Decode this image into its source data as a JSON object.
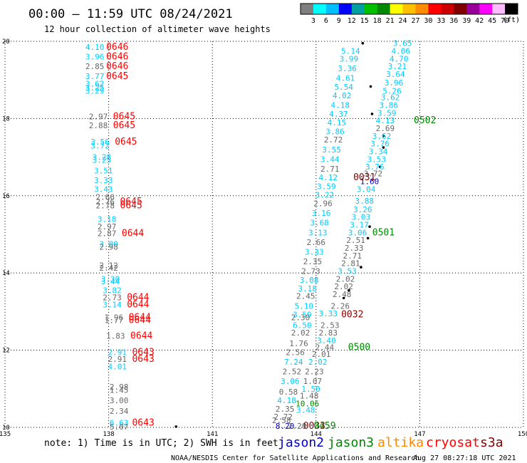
{
  "header": {
    "title": "00:00 – 11:59 UTC 08/24/2021",
    "subtitle": "12 hour collection of altimeter wave heights"
  },
  "color_scale": {
    "colors": [
      "#7f7f7f",
      "#00ffff",
      "#00bfff",
      "#0000ff",
      "#00a0a0",
      "#00c000",
      "#008800",
      "#ffff00",
      "#ffc000",
      "#ff8c00",
      "#ff0000",
      "#cc0000",
      "#800000",
      "#990099",
      "#ff00ff",
      "#ffbbff",
      "#000000"
    ],
    "labels": [
      "3",
      "6",
      "9",
      "12",
      "15",
      "18",
      "21",
      "24",
      "27",
      "30",
      "33",
      "36",
      "39",
      "42",
      "45",
      "70"
    ],
    "unit": "(ft)"
  },
  "colors": {
    "jason2": "#0000cc",
    "jason3": "#008800",
    "altika": "#ff8800",
    "cryosat": "#ff0000",
    "s3a": "#880000",
    "swh_cyan": "#00ccff",
    "swh_gray": "#666666",
    "coast": "#000000"
  },
  "footer": {
    "note": "note: 1) Time is in UTC; 2) SWH is in feet",
    "sat_jason2": "jason2",
    "sat_jason3": "jason3",
    "sat_altika": "altika",
    "sat_cryosat": "cryosat",
    "sat_s3a": "s3a",
    "credit": "NOAA/NESDIS Center for Satellite Applications and Research",
    "timestamp": "Aug 27 08:27:18 UTC 2021"
  },
  "chart_data": {
    "type": "scatter",
    "xlim": [
      135,
      150
    ],
    "ylim": [
      10,
      20
    ],
    "x_ticks": [
      135,
      138,
      141,
      144,
      147,
      150
    ],
    "y_ticks": [
      10,
      12,
      14,
      16,
      18,
      20
    ],
    "grid": true,
    "points": [
      {
        "lon": 137.6,
        "lat": 19.85,
        "v": "4.10",
        "c": "cyan"
      },
      {
        "lon": 138.25,
        "lat": 19.85,
        "v": "0646",
        "c": "red"
      },
      {
        "lon": 137.6,
        "lat": 19.6,
        "v": "3.96",
        "c": "cyan"
      },
      {
        "lon": 138.25,
        "lat": 19.6,
        "v": "0646",
        "c": "red"
      },
      {
        "lon": 137.6,
        "lat": 19.35,
        "v": "2.85",
        "c": "gray"
      },
      {
        "lon": 138.25,
        "lat": 19.35,
        "v": "0646",
        "c": "red"
      },
      {
        "lon": 137.6,
        "lat": 19.1,
        "v": "3.77",
        "c": "cyan"
      },
      {
        "lon": 138.25,
        "lat": 19.1,
        "v": "0645",
        "c": "red"
      },
      {
        "lon": 137.6,
        "lat": 18.9,
        "v": "3.62",
        "c": "cyan"
      },
      {
        "lon": 137.6,
        "lat": 18.8,
        "v": "3.25",
        "c": "cyan"
      },
      {
        "lon": 137.6,
        "lat": 18.72,
        "v": "3.29",
        "c": "cyan"
      },
      {
        "lon": 137.7,
        "lat": 18.05,
        "v": "2.97",
        "c": "gray"
      },
      {
        "lon": 137.7,
        "lat": 17.82,
        "v": "2.88",
        "c": "gray"
      },
      {
        "lon": 138.45,
        "lat": 18.05,
        "v": "0645",
        "c": "red"
      },
      {
        "lon": 138.45,
        "lat": 17.82,
        "v": "0645",
        "c": "red"
      },
      {
        "lon": 137.75,
        "lat": 17.4,
        "v": "3.56",
        "c": "cyan"
      },
      {
        "lon": 138.5,
        "lat": 17.4,
        "v": "0645",
        "c": "red"
      },
      {
        "lon": 137.75,
        "lat": 17.3,
        "v": "3.72",
        "c": "cyan"
      },
      {
        "lon": 137.8,
        "lat": 17.0,
        "v": "3.28",
        "c": "cyan"
      },
      {
        "lon": 137.8,
        "lat": 16.93,
        "v": "3.25",
        "c": "cyan"
      },
      {
        "lon": 137.85,
        "lat": 16.65,
        "v": "3.51",
        "c": "cyan"
      },
      {
        "lon": 137.85,
        "lat": 16.4,
        "v": "3.33",
        "c": "cyan"
      },
      {
        "lon": 137.85,
        "lat": 16.17,
        "v": "3.43",
        "c": "cyan"
      },
      {
        "lon": 137.9,
        "lat": 15.97,
        "v": "2.66",
        "c": "gray"
      },
      {
        "lon": 137.9,
        "lat": 15.85,
        "v": "2.76",
        "c": "gray"
      },
      {
        "lon": 137.9,
        "lat": 15.75,
        "v": "2.78",
        "c": "gray"
      },
      {
        "lon": 138.65,
        "lat": 15.85,
        "v": "0645",
        "c": "red"
      },
      {
        "lon": 138.65,
        "lat": 15.75,
        "v": "0645",
        "c": "red"
      },
      {
        "lon": 137.95,
        "lat": 15.4,
        "v": "3.18",
        "c": "cyan"
      },
      {
        "lon": 137.95,
        "lat": 15.2,
        "v": "2.97",
        "c": "gray"
      },
      {
        "lon": 137.95,
        "lat": 15.03,
        "v": "2.87",
        "c": "gray"
      },
      {
        "lon": 138.7,
        "lat": 15.03,
        "v": "0644",
        "c": "red"
      },
      {
        "lon": 138.0,
        "lat": 14.75,
        "v": "3.00",
        "c": "cyan"
      },
      {
        "lon": 138.0,
        "lat": 14.68,
        "v": "2.98",
        "c": "gray"
      },
      {
        "lon": 138.0,
        "lat": 14.2,
        "v": "2.12",
        "c": "gray"
      },
      {
        "lon": 138.0,
        "lat": 14.13,
        "v": "2.42",
        "c": "gray"
      },
      {
        "lon": 138.05,
        "lat": 13.85,
        "v": "3.30",
        "c": "cyan"
      },
      {
        "lon": 138.05,
        "lat": 13.78,
        "v": "3.44",
        "c": "cyan"
      },
      {
        "lon": 138.1,
        "lat": 13.55,
        "v": "3.82",
        "c": "cyan"
      },
      {
        "lon": 138.1,
        "lat": 13.37,
        "v": "2.73",
        "c": "gray"
      },
      {
        "lon": 138.1,
        "lat": 13.18,
        "v": "3.14",
        "c": "cyan"
      },
      {
        "lon": 138.85,
        "lat": 13.37,
        "v": "0644",
        "c": "red"
      },
      {
        "lon": 138.85,
        "lat": 13.18,
        "v": "0644",
        "c": "red"
      },
      {
        "lon": 138.15,
        "lat": 12.85,
        "v": "1.96",
        "c": "gray"
      },
      {
        "lon": 138.15,
        "lat": 12.78,
        "v": "1.77",
        "c": "gray"
      },
      {
        "lon": 138.9,
        "lat": 12.85,
        "v": "0644",
        "c": "red"
      },
      {
        "lon": 138.9,
        "lat": 12.78,
        "v": "0644",
        "c": "red"
      },
      {
        "lon": 138.2,
        "lat": 12.37,
        "v": "1.83",
        "c": "gray"
      },
      {
        "lon": 138.95,
        "lat": 12.37,
        "v": "0644",
        "c": "red"
      },
      {
        "lon": 138.25,
        "lat": 11.95,
        "v": "2.91",
        "c": "cyan"
      },
      {
        "lon": 138.25,
        "lat": 11.77,
        "v": "2.91",
        "c": "gray"
      },
      {
        "lon": 138.25,
        "lat": 11.58,
        "v": "4.01",
        "c": "cyan"
      },
      {
        "lon": 139.0,
        "lat": 11.95,
        "v": "0643",
        "c": "red"
      },
      {
        "lon": 139.0,
        "lat": 11.77,
        "v": "0643",
        "c": "red"
      },
      {
        "lon": 138.3,
        "lat": 11.05,
        "v": "2.98",
        "c": "gray"
      },
      {
        "lon": 138.3,
        "lat": 10.97,
        "v": "1.45",
        "c": "gray"
      },
      {
        "lon": 138.3,
        "lat": 10.7,
        "v": "3.00",
        "c": "gray"
      },
      {
        "lon": 138.3,
        "lat": 10.42,
        "v": "2.34",
        "c": "gray"
      },
      {
        "lon": 138.3,
        "lat": 10.12,
        "v": "6.63",
        "c": "cyan"
      },
      {
        "lon": 139.0,
        "lat": 10.12,
        "v": "0643",
        "c": "red"
      },
      {
        "lon": 138.3,
        "lat": 10.02,
        "v": "5.07",
        "c": "gray"
      },
      {
        "lon": 146.5,
        "lat": 19.95,
        "v": "3.65",
        "c": "cyan"
      },
      {
        "lon": 146.45,
        "lat": 19.75,
        "v": "4.06",
        "c": "cyan"
      },
      {
        "lon": 146.4,
        "lat": 19.55,
        "v": "4.70",
        "c": "cyan"
      },
      {
        "lon": 146.35,
        "lat": 19.35,
        "v": "3.21",
        "c": "cyan"
      },
      {
        "lon": 146.3,
        "lat": 19.15,
        "v": "3.64",
        "c": "cyan"
      },
      {
        "lon": 146.25,
        "lat": 18.93,
        "v": "3.96",
        "c": "cyan"
      },
      {
        "lon": 146.2,
        "lat": 18.72,
        "v": "5.26",
        "c": "cyan"
      },
      {
        "lon": 146.15,
        "lat": 18.55,
        "v": "3.62",
        "c": "cyan"
      },
      {
        "lon": 146.1,
        "lat": 18.35,
        "v": "3.86",
        "c": "cyan"
      },
      {
        "lon": 146.05,
        "lat": 18.15,
        "v": "3.59",
        "c": "cyan"
      },
      {
        "lon": 146.0,
        "lat": 17.95,
        "v": "4.13",
        "c": "cyan"
      },
      {
        "lon": 146.0,
        "lat": 17.75,
        "v": "2.69",
        "c": "gray"
      },
      {
        "lon": 147.15,
        "lat": 17.95,
        "v": "0502",
        "c": "green"
      },
      {
        "lon": 145.9,
        "lat": 17.55,
        "v": "3.62",
        "c": "cyan"
      },
      {
        "lon": 145.85,
        "lat": 17.35,
        "v": "3.76",
        "c": "cyan"
      },
      {
        "lon": 145.8,
        "lat": 17.15,
        "v": "3.34",
        "c": "cyan"
      },
      {
        "lon": 145.75,
        "lat": 16.95,
        "v": "3.53",
        "c": "cyan"
      },
      {
        "lon": 145.7,
        "lat": 16.75,
        "v": "3.76",
        "c": "cyan"
      },
      {
        "lon": 145.65,
        "lat": 16.58,
        "v": "3.72",
        "c": "gray"
      },
      {
        "lon": 145.0,
        "lat": 19.75,
        "v": "5.14",
        "c": "cyan"
      },
      {
        "lon": 144.95,
        "lat": 19.55,
        "v": "3.99",
        "c": "cyan"
      },
      {
        "lon": 144.9,
        "lat": 19.3,
        "v": "3.36",
        "c": "cyan"
      },
      {
        "lon": 144.85,
        "lat": 19.05,
        "v": "4.61",
        "c": "cyan"
      },
      {
        "lon": 144.8,
        "lat": 18.82,
        "v": "5.54",
        "c": "cyan"
      },
      {
        "lon": 144.75,
        "lat": 18.6,
        "v": "4.02",
        "c": "cyan"
      },
      {
        "lon": 144.7,
        "lat": 18.35,
        "v": "4.18",
        "c": "cyan"
      },
      {
        "lon": 144.65,
        "lat": 18.12,
        "v": "4.37",
        "c": "cyan"
      },
      {
        "lon": 144.6,
        "lat": 17.9,
        "v": "4.15",
        "c": "cyan"
      },
      {
        "lon": 144.55,
        "lat": 17.67,
        "v": "3.86",
        "c": "cyan"
      },
      {
        "lon": 144.5,
        "lat": 17.45,
        "v": "2.72",
        "c": "gray"
      },
      {
        "lon": 144.45,
        "lat": 17.2,
        "v": "3.55",
        "c": "cyan"
      },
      {
        "lon": 144.4,
        "lat": 16.95,
        "v": "3.44",
        "c": "cyan"
      },
      {
        "lon": 144.4,
        "lat": 16.7,
        "v": "2.71",
        "c": "gray"
      },
      {
        "lon": 144.35,
        "lat": 16.48,
        "v": "4.12",
        "c": "cyan"
      },
      {
        "lon": 145.4,
        "lat": 16.48,
        "v": "0031",
        "c": "darkred"
      },
      {
        "lon": 145.55,
        "lat": 16.37,
        "v": "1.60",
        "c": "blue"
      },
      {
        "lon": 144.3,
        "lat": 16.25,
        "v": "3.59",
        "c": "cyan"
      },
      {
        "lon": 145.45,
        "lat": 16.17,
        "v": "3.04",
        "c": "cyan"
      },
      {
        "lon": 144.25,
        "lat": 16.02,
        "v": "3.22",
        "c": "cyan"
      },
      {
        "lon": 145.4,
        "lat": 15.87,
        "v": "3.88",
        "c": "cyan"
      },
      {
        "lon": 144.2,
        "lat": 15.8,
        "v": "2.96",
        "c": "gray"
      },
      {
        "lon": 145.35,
        "lat": 15.65,
        "v": "3.26",
        "c": "cyan"
      },
      {
        "lon": 144.15,
        "lat": 15.55,
        "v": "3.16",
        "c": "cyan"
      },
      {
        "lon": 145.3,
        "lat": 15.45,
        "v": "3.03",
        "c": "cyan"
      },
      {
        "lon": 144.1,
        "lat": 15.3,
        "v": "3.68",
        "c": "cyan"
      },
      {
        "lon": 145.25,
        "lat": 15.25,
        "v": "3.17",
        "c": "cyan"
      },
      {
        "lon": 144.05,
        "lat": 15.05,
        "v": "3.13",
        "c": "cyan"
      },
      {
        "lon": 145.2,
        "lat": 15.05,
        "v": "3.06",
        "c": "cyan"
      },
      {
        "lon": 145.95,
        "lat": 15.05,
        "v": "0501",
        "c": "green"
      },
      {
        "lon": 144.0,
        "lat": 14.8,
        "v": "2.66",
        "c": "gray"
      },
      {
        "lon": 145.15,
        "lat": 14.85,
        "v": "2.51",
        "c": "gray"
      },
      {
        "lon": 143.95,
        "lat": 14.55,
        "v": "3.33",
        "c": "cyan"
      },
      {
        "lon": 145.1,
        "lat": 14.65,
        "v": "2.33",
        "c": "gray"
      },
      {
        "lon": 143.9,
        "lat": 14.3,
        "v": "2.35",
        "c": "gray"
      },
      {
        "lon": 145.05,
        "lat": 14.45,
        "v": "2.71",
        "c": "gray"
      },
      {
        "lon": 143.85,
        "lat": 14.05,
        "v": "2.73",
        "c": "gray"
      },
      {
        "lon": 145.0,
        "lat": 14.25,
        "v": "2.81",
        "c": "gray"
      },
      {
        "lon": 144.9,
        "lat": 14.05,
        "v": "3.53",
        "c": "cyan"
      },
      {
        "lon": 143.8,
        "lat": 13.82,
        "v": "3.08",
        "c": "cyan"
      },
      {
        "lon": 144.85,
        "lat": 13.85,
        "v": "2.02",
        "c": "gray"
      },
      {
        "lon": 143.75,
        "lat": 13.6,
        "v": "3.18",
        "c": "cyan"
      },
      {
        "lon": 144.8,
        "lat": 13.65,
        "v": "2.02",
        "c": "gray"
      },
      {
        "lon": 143.7,
        "lat": 13.4,
        "v": "2.45",
        "c": "gray"
      },
      {
        "lon": 144.75,
        "lat": 13.45,
        "v": "2.48",
        "c": "gray"
      },
      {
        "lon": 143.65,
        "lat": 13.15,
        "v": "5.10",
        "c": "cyan"
      },
      {
        "lon": 144.7,
        "lat": 13.15,
        "v": "2.26",
        "c": "gray"
      },
      {
        "lon": 143.6,
        "lat": 12.92,
        "v": "3.59",
        "c": "cyan"
      },
      {
        "lon": 144.35,
        "lat": 12.95,
        "v": "3.33",
        "c": "cyan"
      },
      {
        "lon": 145.05,
        "lat": 12.92,
        "v": "0032",
        "c": "darkred"
      },
      {
        "lon": 143.55,
        "lat": 12.85,
        "v": "2.30",
        "c": "gray"
      },
      {
        "lon": 143.6,
        "lat": 12.65,
        "v": "6.50",
        "c": "cyan"
      },
      {
        "lon": 144.4,
        "lat": 12.65,
        "v": "2.53",
        "c": "gray"
      },
      {
        "lon": 143.55,
        "lat": 12.45,
        "v": "2.02",
        "c": "gray"
      },
      {
        "lon": 144.35,
        "lat": 12.45,
        "v": "2.83",
        "c": "gray"
      },
      {
        "lon": 144.3,
        "lat": 12.25,
        "v": "3.40",
        "c": "cyan"
      },
      {
        "lon": 143.5,
        "lat": 12.18,
        "v": "1.76",
        "c": "gray"
      },
      {
        "lon": 144.25,
        "lat": 12.08,
        "v": "2.44",
        "c": "gray"
      },
      {
        "lon": 145.25,
        "lat": 12.08,
        "v": "0500",
        "c": "green"
      },
      {
        "lon": 143.4,
        "lat": 11.95,
        "v": "2.56",
        "c": "gray"
      },
      {
        "lon": 144.15,
        "lat": 11.9,
        "v": "2.01",
        "c": "gray"
      },
      {
        "lon": 143.35,
        "lat": 11.7,
        "v": "7.24",
        "c": "cyan"
      },
      {
        "lon": 144.05,
        "lat": 11.7,
        "v": "2.02",
        "c": "cyan"
      },
      {
        "lon": 143.3,
        "lat": 11.45,
        "v": "2.52",
        "c": "gray"
      },
      {
        "lon": 143.95,
        "lat": 11.45,
        "v": "2.23",
        "c": "gray"
      },
      {
        "lon": 143.25,
        "lat": 11.2,
        "v": "3.06",
        "c": "cyan"
      },
      {
        "lon": 143.9,
        "lat": 11.2,
        "v": "1.07",
        "c": "gray"
      },
      {
        "lon": 143.85,
        "lat": 11.0,
        "v": "1.50",
        "c": "cyan"
      },
      {
        "lon": 143.2,
        "lat": 10.92,
        "v": "0.58",
        "c": "gray"
      },
      {
        "lon": 143.8,
        "lat": 10.82,
        "v": "1.48",
        "c": "gray"
      },
      {
        "lon": 143.15,
        "lat": 10.7,
        "v": "4.18",
        "c": "cyan"
      },
      {
        "lon": 143.75,
        "lat": 10.62,
        "v": "10.06",
        "c": "green"
      },
      {
        "lon": 143.1,
        "lat": 10.48,
        "v": "2.35",
        "c": "gray"
      },
      {
        "lon": 143.7,
        "lat": 10.45,
        "v": "3.48",
        "c": "cyan"
      },
      {
        "lon": 143.05,
        "lat": 10.28,
        "v": "2.72",
        "c": "gray"
      },
      {
        "lon": 143.0,
        "lat": 10.18,
        "v": "2.58",
        "c": "gray"
      },
      {
        "lon": 143.1,
        "lat": 10.04,
        "v": "8.20",
        "c": "blue"
      },
      {
        "lon": 143.45,
        "lat": 10.04,
        "v": "2.20",
        "c": "gray"
      },
      {
        "lon": 143.95,
        "lat": 10.04,
        "v": "0033",
        "c": "darkred"
      },
      {
        "lon": 144.25,
        "lat": 10.04,
        "v": "0459",
        "c": "green"
      }
    ],
    "coast_dots": [
      {
        "lon": 145.35,
        "lat": 19.95
      },
      {
        "lon": 145.58,
        "lat": 18.83
      },
      {
        "lon": 145.62,
        "lat": 18.12
      },
      {
        "lon": 145.95,
        "lat": 17.55
      },
      {
        "lon": 145.95,
        "lat": 17.25
      },
      {
        "lon": 145.85,
        "lat": 16.75
      },
      {
        "lon": 145.55,
        "lat": 15.2
      },
      {
        "lon": 145.5,
        "lat": 14.9
      },
      {
        "lon": 145.3,
        "lat": 14.15
      },
      {
        "lon": 144.95,
        "lat": 13.55
      },
      {
        "lon": 144.8,
        "lat": 13.35
      },
      {
        "lon": 139.95,
        "lat": 10.02
      }
    ]
  }
}
